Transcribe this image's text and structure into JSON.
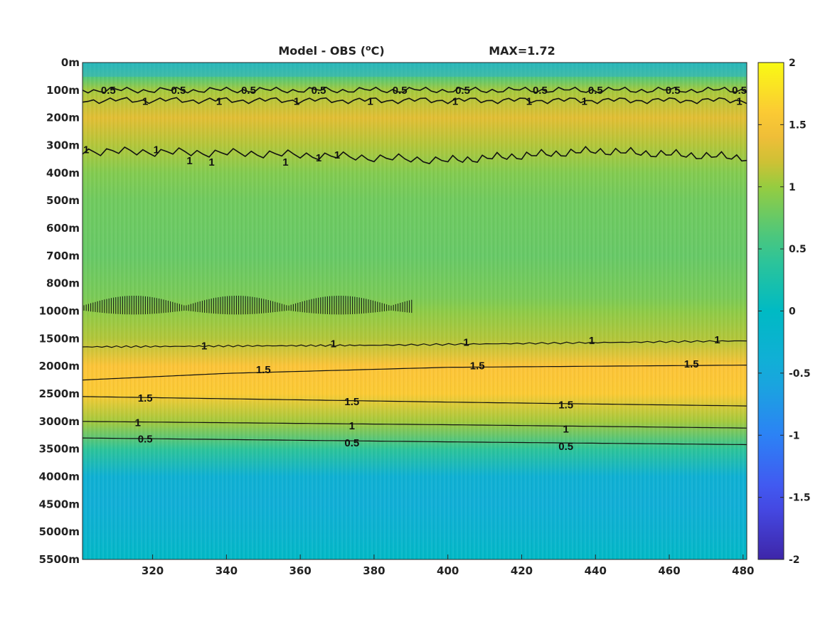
{
  "chart_data": {
    "type": "heatmap",
    "title": "Model - OBS (",
    "title_sup": "o",
    "title_unit": "C)",
    "max_label": "MAX=1.72",
    "xlim": [
      301,
      481
    ],
    "x_ticks": [
      320,
      340,
      360,
      380,
      400,
      420,
      440,
      460,
      480
    ],
    "y_ticks": [
      "0m",
      "100m",
      "200m",
      "300m",
      "400m",
      "500m",
      "600m",
      "700m",
      "800m",
      "1000m",
      "1500m",
      "2000m",
      "2500m",
      "3000m",
      "3500m",
      "4000m",
      "4500m",
      "5000m",
      "5500m"
    ],
    "colorbar": {
      "range": [
        -2,
        2
      ],
      "ticks": [
        "2",
        "1.5",
        "1",
        "0.5",
        "0",
        "-0.5",
        "-1",
        "-1.5",
        "-2"
      ],
      "colormap": "parula"
    },
    "mean_profile": [
      {
        "depth": "0m",
        "value": 0.2
      },
      {
        "depth": "50m",
        "value": 0.6
      },
      {
        "depth": "100m",
        "value": 1.05
      },
      {
        "depth": "200m",
        "value": 1.3
      },
      {
        "depth": "300m",
        "value": 1.1
      },
      {
        "depth": "400m",
        "value": 0.9
      },
      {
        "depth": "500m",
        "value": 0.8
      },
      {
        "depth": "700m",
        "value": 0.75
      },
      {
        "depth": "900m",
        "value": 0.85
      },
      {
        "depth": "1000m",
        "value": 0.95
      },
      {
        "depth": "1500m",
        "value": 1.1
      },
      {
        "depth": "2000m",
        "value": 1.55
      },
      {
        "depth": "2500m",
        "value": 1.6
      },
      {
        "depth": "3000m",
        "value": 1.05
      },
      {
        "depth": "3500m",
        "value": 0.4
      },
      {
        "depth": "4000m",
        "value": -0.35
      },
      {
        "depth": "4500m",
        "value": -0.4
      },
      {
        "depth": "5000m",
        "value": -0.25
      },
      {
        "depth": "5500m",
        "value": -0.05
      }
    ],
    "contours": [
      {
        "level": "0.5",
        "points": [
          [
            301,
            100
          ],
          [
            481,
            100
          ]
        ]
      },
      {
        "level": "1",
        "points": [
          [
            301,
            137
          ],
          [
            481,
            137
          ]
        ]
      },
      {
        "level": "1",
        "points": [
          [
            301,
            320
          ],
          [
            350,
            330
          ],
          [
            400,
            355
          ],
          [
            440,
            320
          ],
          [
            481,
            345
          ]
        ]
      },
      {
        "level": "1",
        "points": [
          [
            301,
            1650
          ],
          [
            380,
            1620
          ],
          [
            481,
            1540
          ]
        ]
      },
      {
        "level": "1.5",
        "points": [
          [
            301,
            2250
          ],
          [
            340,
            2130
          ],
          [
            400,
            2020
          ],
          [
            481,
            1980
          ]
        ]
      },
      {
        "level": "1.5",
        "points": [
          [
            301,
            2550
          ],
          [
            400,
            2650
          ],
          [
            481,
            2720
          ]
        ]
      },
      {
        "level": "1",
        "points": [
          [
            301,
            3000
          ],
          [
            400,
            3060
          ],
          [
            481,
            3120
          ]
        ]
      },
      {
        "level": "0.5",
        "points": [
          [
            301,
            3300
          ],
          [
            400,
            3370
          ],
          [
            481,
            3420
          ]
        ]
      }
    ],
    "contour_labels": [
      {
        "text": "0.5",
        "x": 308,
        "depth": 100
      },
      {
        "text": "0.5",
        "x": 327,
        "depth": 100
      },
      {
        "text": "0.5",
        "x": 346,
        "depth": 100
      },
      {
        "text": "0.5",
        "x": 365,
        "depth": 100
      },
      {
        "text": "0.5",
        "x": 387,
        "depth": 100
      },
      {
        "text": "0.5",
        "x": 404,
        "depth": 100
      },
      {
        "text": "0.5",
        "x": 425,
        "depth": 100
      },
      {
        "text": "0.5",
        "x": 440,
        "depth": 100
      },
      {
        "text": "0.5",
        "x": 461,
        "depth": 100
      },
      {
        "text": "0.5",
        "x": 479,
        "depth": 100
      },
      {
        "text": "1",
        "x": 318,
        "depth": 140
      },
      {
        "text": "1",
        "x": 338,
        "depth": 140
      },
      {
        "text": "1",
        "x": 359,
        "depth": 140
      },
      {
        "text": "1",
        "x": 379,
        "depth": 140
      },
      {
        "text": "1",
        "x": 402,
        "depth": 140
      },
      {
        "text": "1",
        "x": 422,
        "depth": 140
      },
      {
        "text": "1",
        "x": 437,
        "depth": 140
      },
      {
        "text": "1",
        "x": 479,
        "depth": 140
      },
      {
        "text": "1",
        "x": 302,
        "depth": 315
      },
      {
        "text": "1",
        "x": 321,
        "depth": 315
      },
      {
        "text": "1",
        "x": 330,
        "depth": 355
      },
      {
        "text": "1",
        "x": 336,
        "depth": 360
      },
      {
        "text": "1",
        "x": 356,
        "depth": 360
      },
      {
        "text": "1",
        "x": 365,
        "depth": 345
      },
      {
        "text": "1",
        "x": 370,
        "depth": 335
      },
      {
        "text": "1",
        "x": 334,
        "depth": 1630
      },
      {
        "text": "1",
        "x": 369,
        "depth": 1590
      },
      {
        "text": "1",
        "x": 405,
        "depth": 1565
      },
      {
        "text": "1",
        "x": 439,
        "depth": 1535
      },
      {
        "text": "1",
        "x": 473,
        "depth": 1520
      },
      {
        "text": "1.5",
        "x": 350,
        "depth": 2065
      },
      {
        "text": "1.5",
        "x": 408,
        "depth": 1990
      },
      {
        "text": "1.5",
        "x": 466,
        "depth": 1960
      },
      {
        "text": "1.5",
        "x": 318,
        "depth": 2580
      },
      {
        "text": "1.5",
        "x": 374,
        "depth": 2640
      },
      {
        "text": "1.5",
        "x": 432,
        "depth": 2700
      },
      {
        "text": "1",
        "x": 316,
        "depth": 3020
      },
      {
        "text": "1",
        "x": 374,
        "depth": 3080
      },
      {
        "text": "1",
        "x": 432,
        "depth": 3140
      },
      {
        "text": "0.5",
        "x": 318,
        "depth": 3320
      },
      {
        "text": "0.5",
        "x": 374,
        "depth": 3390
      },
      {
        "text": "0.5",
        "x": 432,
        "depth": 3450
      }
    ]
  }
}
